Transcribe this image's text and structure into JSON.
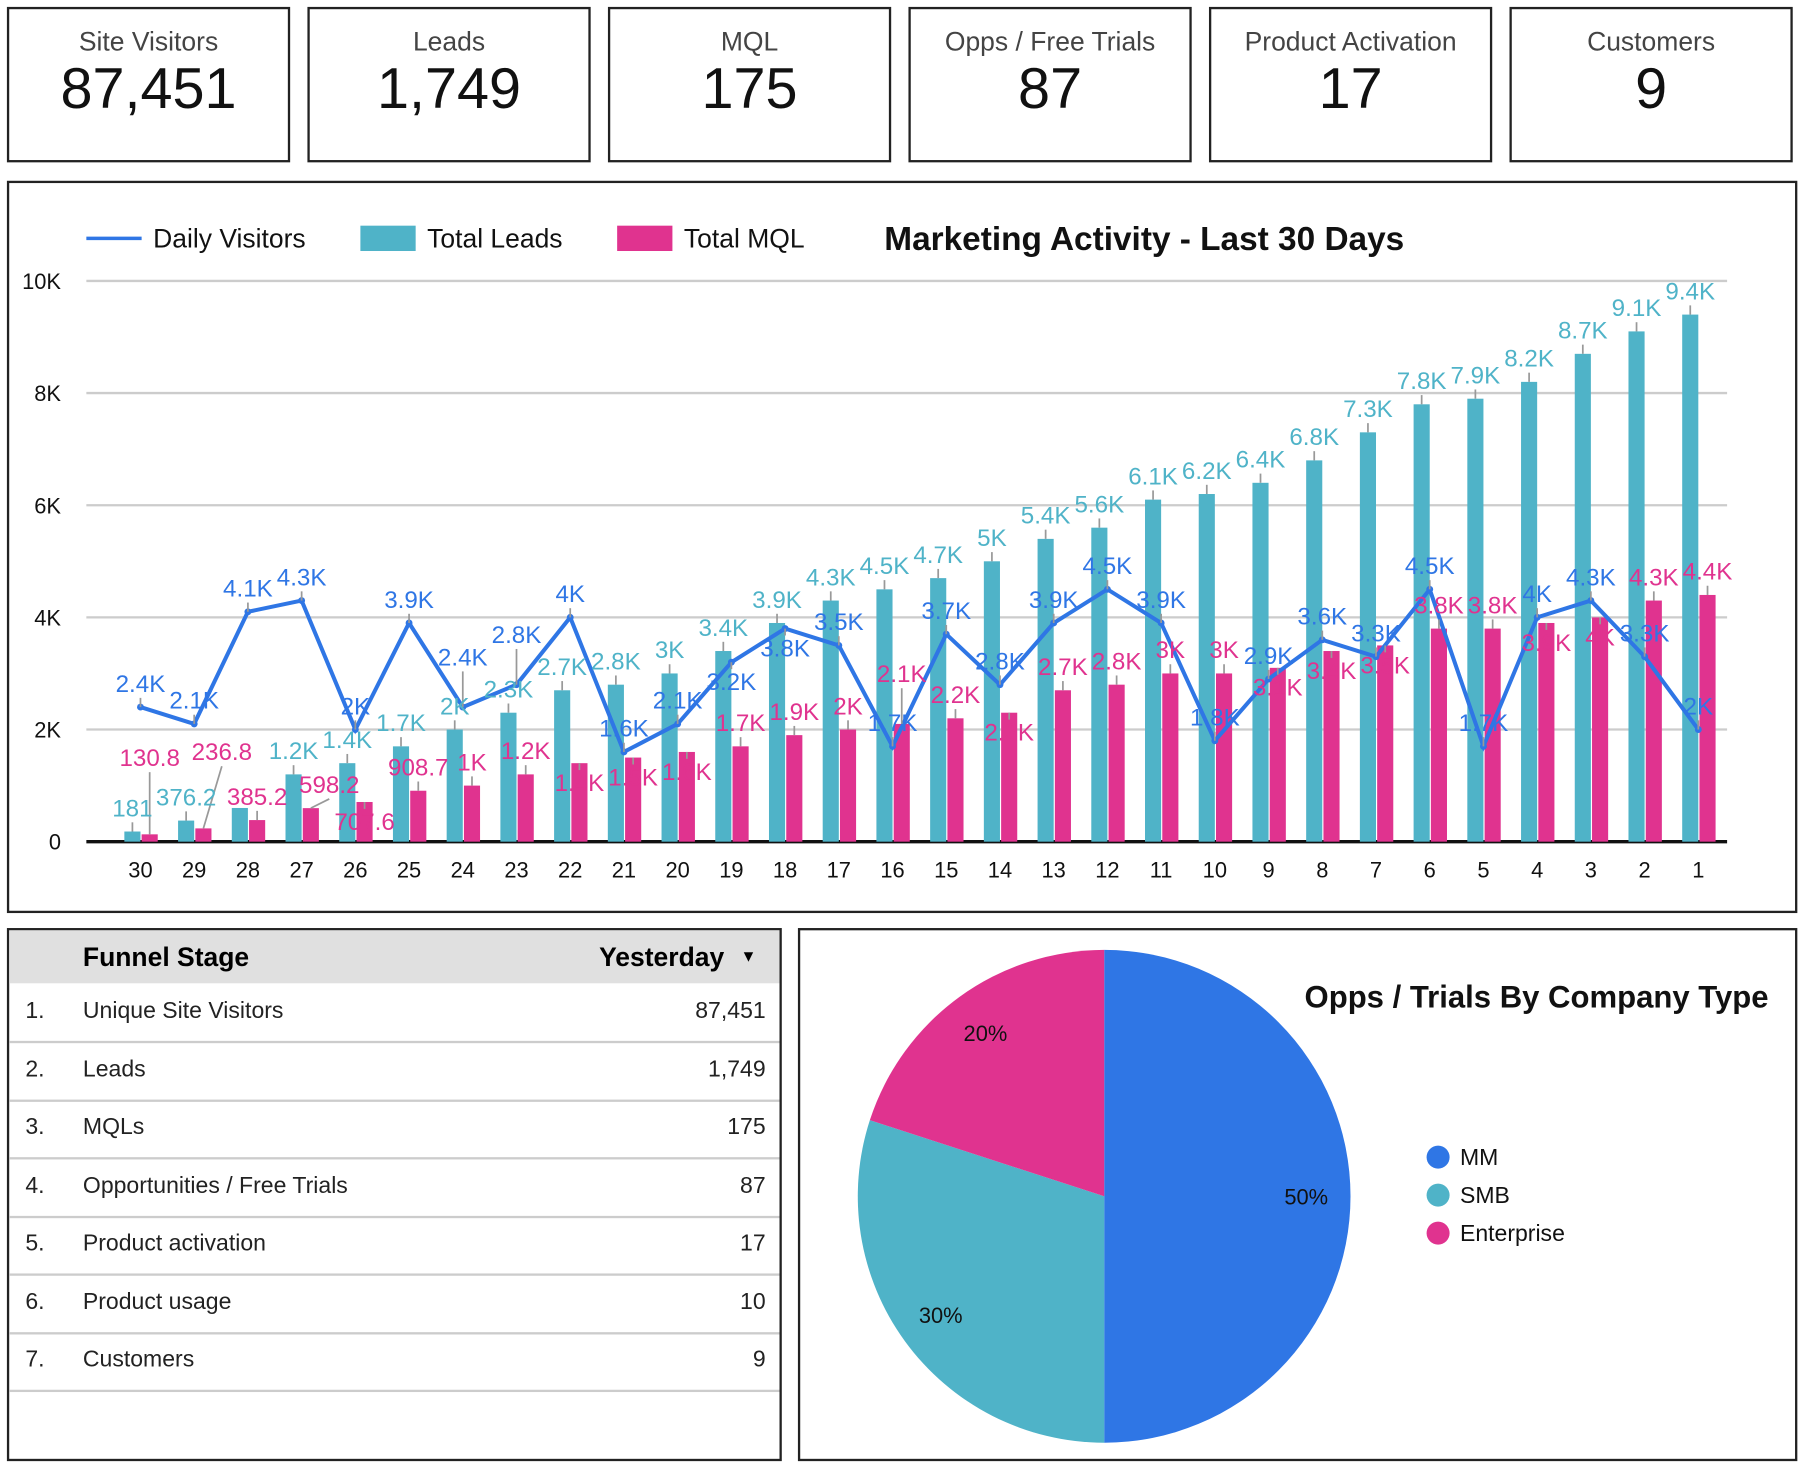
{
  "kpis": [
    {
      "label": "Site Visitors",
      "value": "87,451"
    },
    {
      "label": "Leads",
      "value": "1,749"
    },
    {
      "label": "MQL",
      "value": "175"
    },
    {
      "label": "Opps / Free Trials",
      "value": "87"
    },
    {
      "label": "Product Activation",
      "value": "17"
    },
    {
      "label": "Customers",
      "value": "9"
    }
  ],
  "colors": {
    "visitors": "#2f76e5",
    "leads": "#4fb3c8",
    "mql": "#e0338f"
  },
  "chart_data": [
    {
      "type": "bar+line",
      "title": "Marketing Activity - Last 30 Days",
      "ylim": [
        0,
        10000
      ],
      "yticks": [
        "0",
        "2K",
        "4K",
        "6K",
        "8K",
        "10K"
      ],
      "legend_placement": "top-left",
      "grid": true,
      "categories": [
        "30",
        "29",
        "28",
        "27",
        "26",
        "25",
        "24",
        "23",
        "22",
        "21",
        "20",
        "19",
        "18",
        "17",
        "16",
        "15",
        "14",
        "13",
        "12",
        "11",
        "10",
        "9",
        "8",
        "7",
        "6",
        "5",
        "4",
        "3",
        "2",
        "1"
      ],
      "series": [
        {
          "name": "Daily Visitors",
          "type": "line",
          "values": [
            2400,
            2100,
            4100,
            4300,
            2000,
            3900,
            2400,
            2800,
            4000,
            1600,
            2100,
            3200,
            3800,
            3500,
            1700,
            3700,
            2800,
            3900,
            4500,
            3900,
            1800,
            2900,
            3600,
            3300,
            4500,
            1700,
            4000,
            4300,
            3300,
            2000
          ],
          "labels": [
            "2.4K",
            "2.1K",
            "4.1K",
            "4.3K",
            "2K",
            "3.9K",
            "2.4K",
            "2.8K",
            "4K",
            "1.6K",
            "2.1K",
            "3.2K",
            "3.8K",
            "3.5K",
            "1.7K",
            "3.7K",
            "2.8K",
            "3.9K",
            "4.5K",
            "3.9K",
            "1.8K",
            "2.9K",
            "3.6K",
            "3.3K",
            "4.5K",
            "1.7K",
            "4K",
            "4.3K",
            "3.3K",
            "2K"
          ]
        },
        {
          "name": "Total Leads",
          "type": "bar",
          "values": [
            181,
            376.2,
            601,
            1200,
            1400,
            1700,
            2000,
            2300,
            2700,
            2800,
            3000,
            3400,
            3900,
            4300,
            4500,
            4700,
            5000,
            5400,
            5600,
            6100,
            6200,
            6400,
            6800,
            7300,
            7800,
            7900,
            8200,
            8700,
            9100,
            9400
          ],
          "labels": [
            "181",
            "376.2",
            "",
            "1.2K",
            "1.4K",
            "1.7K",
            "2K",
            "2.3K",
            "2.7K",
            "2.8K",
            "3K",
            "3.4K",
            "3.9K",
            "4.3K",
            "4.5K",
            "4.7K",
            "5K",
            "5.4K",
            "5.6K",
            "6.1K",
            "6.2K",
            "6.4K",
            "6.8K",
            "7.3K",
            "7.8K",
            "7.9K",
            "8.2K",
            "8.7K",
            "9.1K",
            "9.4K"
          ]
        },
        {
          "name": "Total MQL",
          "type": "bar",
          "values": [
            130.8,
            236.8,
            385.2,
            598.2,
            707.6,
            908.7,
            1000,
            1200,
            1400,
            1500,
            1600,
            1700,
            1900,
            2000,
            2100,
            2200,
            2300,
            2700,
            2800,
            3000,
            3000,
            3100,
            3400,
            3500,
            3800,
            3800,
            3900,
            4000,
            4300,
            4400
          ],
          "labels": [
            "130.8",
            "236.8",
            "385.2",
            "598.2",
            "707.6",
            "908.7",
            "1K",
            "1.2K",
            "1.4K",
            "1.5K",
            "1.6K",
            "1.7K",
            "1.9K",
            "2K",
            "2.1K",
            "2.2K",
            "2.3K",
            "2.7K",
            "2.8K",
            "3K",
            "3K",
            "3.1K",
            "3.4K",
            "3.5K",
            "3.8K",
            "3.8K",
            "3.9K",
            "4K",
            "4.3K",
            "4.4K"
          ]
        }
      ]
    },
    {
      "type": "pie",
      "title": "Opps / Trials By Company Type",
      "legend_placement": "right",
      "slices": [
        {
          "name": "MM",
          "value": 50,
          "label": "50%",
          "color": "#2f76e5"
        },
        {
          "name": "SMB",
          "value": 30,
          "label": "30%",
          "color": "#4fb3c8"
        },
        {
          "name": "Enterprise",
          "value": 20,
          "label": "20%",
          "color": "#e0338f"
        }
      ]
    }
  ],
  "funnel": {
    "col_stage": "Funnel Stage",
    "col_period": "Yesterday",
    "rows": [
      {
        "n": "1.",
        "stage": "Unique Site Visitors",
        "value": "87,451"
      },
      {
        "n": "2.",
        "stage": "Leads",
        "value": "1,749"
      },
      {
        "n": "3.",
        "stage": "MQLs",
        "value": "175"
      },
      {
        "n": "4.",
        "stage": "Opportunities / Free Trials",
        "value": "87"
      },
      {
        "n": "5.",
        "stage": "Product activation",
        "value": "17"
      },
      {
        "n": "6.",
        "stage": "Product usage",
        "value": "10"
      },
      {
        "n": "7.",
        "stage": "Customers",
        "value": "9"
      }
    ]
  }
}
